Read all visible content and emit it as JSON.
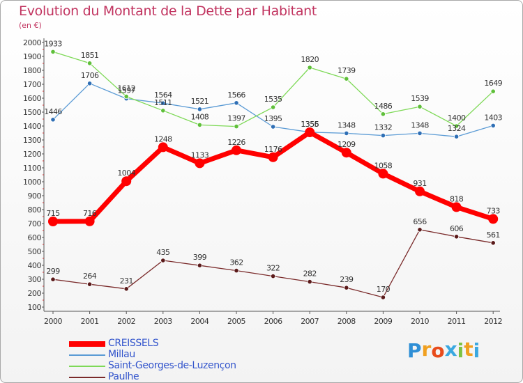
{
  "title": "Evolution du Montant de la Dette par Habitant",
  "subtitle": "(en €)",
  "chart_data": {
    "type": "line",
    "title": "Evolution du Montant de la Dette par Habitant",
    "subtitle": "(en €)",
    "xlabel": "",
    "ylabel": "",
    "ylim": [
      100,
      2000
    ],
    "yticks": [
      100,
      200,
      300,
      400,
      500,
      600,
      700,
      800,
      900,
      1000,
      1100,
      1200,
      1300,
      1400,
      1500,
      1600,
      1700,
      1800,
      1900,
      2000
    ],
    "categories": [
      "2000",
      "2001",
      "2002",
      "2003",
      "2004",
      "2005",
      "2006",
      "2007",
      "2008",
      "2009",
      "2010",
      "2011",
      "2012"
    ],
    "grid": false,
    "legend_position": "bottom-left",
    "series": [
      {
        "name": "CREISSELS",
        "color": "#ff0000",
        "values": [
          715,
          716,
          1004,
          1248,
          1133,
          1226,
          1176,
          1355,
          1209,
          1058,
          931,
          818,
          733
        ]
      },
      {
        "name": "Millau",
        "color": "#5b9bd5",
        "values": [
          1446,
          1706,
          1597,
          1564,
          1521,
          1566,
          1395,
          1356,
          1348,
          1332,
          1348,
          1324,
          1403
        ]
      },
      {
        "name": "Saint-Georges-de-Luzençon",
        "color": "#7ed957",
        "values": [
          1933,
          1851,
          1612,
          1511,
          1408,
          1397,
          1535,
          1820,
          1739,
          1486,
          1539,
          1400,
          1649
        ]
      },
      {
        "name": "Paulhe",
        "color": "#7a2a2a",
        "values": [
          299,
          264,
          231,
          435,
          399,
          362,
          322,
          282,
          239,
          170,
          656,
          606,
          561
        ]
      }
    ]
  },
  "logo": {
    "letters": [
      "P",
      "r",
      "o",
      "x",
      "i",
      "t",
      "i"
    ],
    "colors": [
      "#2f8fd6",
      "#f0a020",
      "#e84c1c",
      "#3aa8e0",
      "#7cc242",
      "#f0a020",
      "#3aa8e0"
    ]
  }
}
